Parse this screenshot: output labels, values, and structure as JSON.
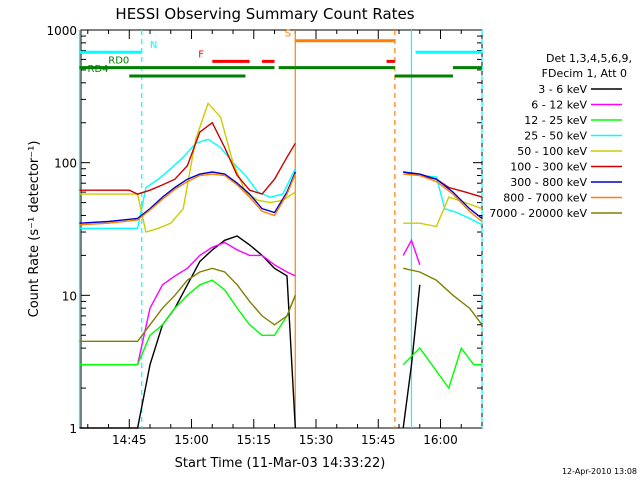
{
  "chart_data": {
    "type": "line",
    "title": "HESSI Observing Summary Count Rates",
    "xlabel": "Start Time (11-Mar-03 14:33:22)",
    "ylabel": "Count Rate (s⁻¹ detector⁻¹)",
    "y_scale": "log",
    "ylim": [
      1,
      1000
    ],
    "xlim": [
      "14:33:22",
      "16:10:00"
    ],
    "x_ticks": [
      "14:45",
      "15:00",
      "15:15",
      "15:30",
      "15:45",
      "16:00"
    ],
    "y_ticks": [
      "1",
      "10",
      "100",
      "1000"
    ],
    "timestamp": "12-Apr-2010 13:08",
    "legend": {
      "placement": "right",
      "header": [
        "Det 1,3,4,5,6,9,",
        "FDecim 1, Att 0"
      ]
    },
    "series": [
      {
        "name": "3 - 6 keV",
        "color": "#000000",
        "x": [
          "14:33",
          "14:40",
          "14:47",
          "14:50",
          "14:53",
          "14:56",
          "14:59",
          "15:02",
          "15:05",
          "15:08",
          "15:11",
          "15:14",
          "15:17",
          "15:20",
          "15:23",
          "15:25",
          "15:51",
          "15:53",
          "15:55"
        ],
        "y": [
          1,
          1,
          1,
          3,
          6,
          8,
          12,
          18,
          22,
          26,
          28,
          24,
          20,
          16,
          14,
          1,
          1,
          3,
          12
        ]
      },
      {
        "name": "6 - 12 keV",
        "color": "#ff00ff",
        "x": [
          "14:47",
          "14:50",
          "14:53",
          "14:56",
          "14:59",
          "15:02",
          "15:05",
          "15:08",
          "15:11",
          "15:14",
          "15:17",
          "15:20",
          "15:23",
          "15:25",
          "15:51",
          "15:53",
          "15:55"
        ],
        "y": [
          3,
          8,
          12,
          14,
          16,
          20,
          23,
          25,
          22,
          20,
          20,
          17,
          15,
          14,
          20,
          26,
          17
        ]
      },
      {
        "name": "12 - 25 keV",
        "color": "#00ff00",
        "x": [
          "14:33",
          "14:47",
          "14:50",
          "14:53",
          "14:56",
          "14:59",
          "15:02",
          "15:05",
          "15:08",
          "15:11",
          "15:14",
          "15:17",
          "15:20",
          "15:23",
          "15:25",
          "15:51",
          "15:55",
          "16:02",
          "16:05",
          "16:08",
          "16:10"
        ],
        "y": [
          3,
          3,
          5,
          6,
          8,
          10,
          12,
          13,
          11,
          8,
          6,
          5,
          5,
          7,
          10,
          3,
          4,
          2,
          4,
          3,
          3
        ]
      },
      {
        "name": "25 - 50 keV",
        "color": "#00ffff",
        "x": [
          "14:33",
          "14:41",
          "14:47",
          "14:49",
          "14:52",
          "14:55",
          "14:58",
          "15:01",
          "15:04",
          "15:07",
          "15:10",
          "15:13",
          "15:16",
          "15:19",
          "15:22",
          "15:25",
          "15:51",
          "15:55",
          "15:59",
          "16:01",
          "16:04",
          "16:07",
          "16:10"
        ],
        "y": [
          32,
          32,
          32,
          65,
          75,
          90,
          110,
          140,
          150,
          130,
          100,
          80,
          60,
          55,
          58,
          90,
          85,
          80,
          78,
          45,
          42,
          38,
          34
        ]
      },
      {
        "name": "50 - 100 keV",
        "color": "#cccc00",
        "x": [
          "14:33",
          "14:45",
          "14:47",
          "14:49",
          "14:52",
          "14:55",
          "14:58",
          "15:01",
          "15:04",
          "15:07",
          "15:10",
          "15:13",
          "15:16",
          "15:19",
          "15:22",
          "15:25",
          "15:51",
          "15:55",
          "15:59",
          "16:02",
          "16:06",
          "16:10"
        ],
        "y": [
          58,
          58,
          58,
          30,
          32,
          35,
          45,
          150,
          280,
          220,
          100,
          60,
          52,
          50,
          52,
          60,
          35,
          35,
          33,
          55,
          50,
          45
        ]
      },
      {
        "name": "100 - 300 keV",
        "color": "#cc0000",
        "x": [
          "14:33",
          "14:40",
          "14:45",
          "14:47",
          "14:50",
          "14:53",
          "14:56",
          "14:59",
          "15:02",
          "15:05",
          "15:08",
          "15:11",
          "15:14",
          "15:17",
          "15:20",
          "15:23",
          "15:25",
          "15:51",
          "15:55",
          "15:59",
          "16:02",
          "16:06",
          "16:10"
        ],
        "y": [
          62,
          62,
          62,
          58,
          62,
          68,
          75,
          95,
          170,
          200,
          130,
          80,
          62,
          58,
          75,
          110,
          140,
          85,
          80,
          75,
          65,
          60,
          55
        ]
      },
      {
        "name": "300 - 800 keV",
        "color": "#0000cc",
        "x": [
          "14:33",
          "14:40",
          "14:47",
          "14:50",
          "14:53",
          "14:56",
          "14:59",
          "15:02",
          "15:05",
          "15:08",
          "15:11",
          "15:14",
          "15:17",
          "15:20",
          "15:23",
          "15:25",
          "15:51",
          "15:55",
          "15:59",
          "16:03",
          "16:07",
          "16:10"
        ],
        "y": [
          35,
          36,
          38,
          45,
          55,
          65,
          75,
          82,
          85,
          82,
          70,
          58,
          45,
          42,
          60,
          85,
          85,
          82,
          75,
          60,
          45,
          38
        ]
      },
      {
        "name": "800 - 7000 keV",
        "color": "#ff8000",
        "x": [
          "14:33",
          "14:40",
          "14:47",
          "14:50",
          "14:53",
          "14:56",
          "14:59",
          "15:02",
          "15:05",
          "15:08",
          "15:11",
          "15:14",
          "15:17",
          "15:20",
          "15:23",
          "15:25",
          "15:51",
          "15:55",
          "15:59",
          "16:03",
          "16:07",
          "16:10"
        ],
        "y": [
          34,
          35,
          37,
          44,
          53,
          63,
          72,
          80,
          82,
          80,
          68,
          55,
          43,
          40,
          58,
          82,
          82,
          80,
          72,
          58,
          43,
          36
        ]
      },
      {
        "name": "7000 - 20000 keV",
        "color": "#808000",
        "x": [
          "14:33",
          "14:47",
          "14:50",
          "14:53",
          "14:56",
          "14:59",
          "15:02",
          "15:05",
          "15:08",
          "15:11",
          "15:14",
          "15:17",
          "15:20",
          "15:23",
          "15:25",
          "15:51",
          "15:55",
          "15:59",
          "16:03",
          "16:07",
          "16:10"
        ],
        "y": [
          4.5,
          4.5,
          6,
          8,
          10,
          13,
          15,
          16,
          15,
          12,
          9,
          7,
          6,
          7,
          10,
          16,
          15,
          13,
          10,
          8,
          6
        ]
      }
    ],
    "vertical_lines": [
      {
        "x": "14:33",
        "color": "#00ffff",
        "style": "solid"
      },
      {
        "x": "14:48",
        "color": "#00ffff",
        "style": "dashed"
      },
      {
        "x": "15:25",
        "color": "#ff8000",
        "style": "solid"
      },
      {
        "x": "15:49",
        "color": "#ff8000",
        "style": "dashed"
      },
      {
        "x": "15:53",
        "color": "#00ffff",
        "style": "solid"
      },
      {
        "x": "16:10",
        "color": "#00ffff",
        "style": "dashed"
      }
    ],
    "flag_bars": [
      {
        "label": "N",
        "color": "#00ffff",
        "level": 680,
        "segments": [
          [
            "14:33",
            "14:48"
          ],
          [
            "15:54",
            "16:10"
          ]
        ]
      },
      {
        "label": "S",
        "color": "#ff8000",
        "level": 830,
        "segments": [
          [
            "15:25",
            "15:49"
          ]
        ]
      },
      {
        "label": "F",
        "color": "#ff0000",
        "level": 580,
        "segments": [
          [
            "15:05",
            "15:14"
          ],
          [
            "15:17",
            "15:20"
          ],
          [
            "15:47",
            "15:49"
          ]
        ]
      },
      {
        "label": "RD0",
        "color": "#008000",
        "level": 520,
        "segments": [
          [
            "14:33",
            "15:20"
          ],
          [
            "15:21",
            "15:25"
          ],
          [
            "15:25",
            "15:49"
          ],
          [
            "16:03",
            "16:10"
          ]
        ]
      },
      {
        "label": "RD4",
        "color": "#008000",
        "level": 450,
        "segments": [
          [
            "14:45",
            "15:13"
          ],
          [
            "15:49",
            "16:03"
          ]
        ]
      }
    ]
  }
}
